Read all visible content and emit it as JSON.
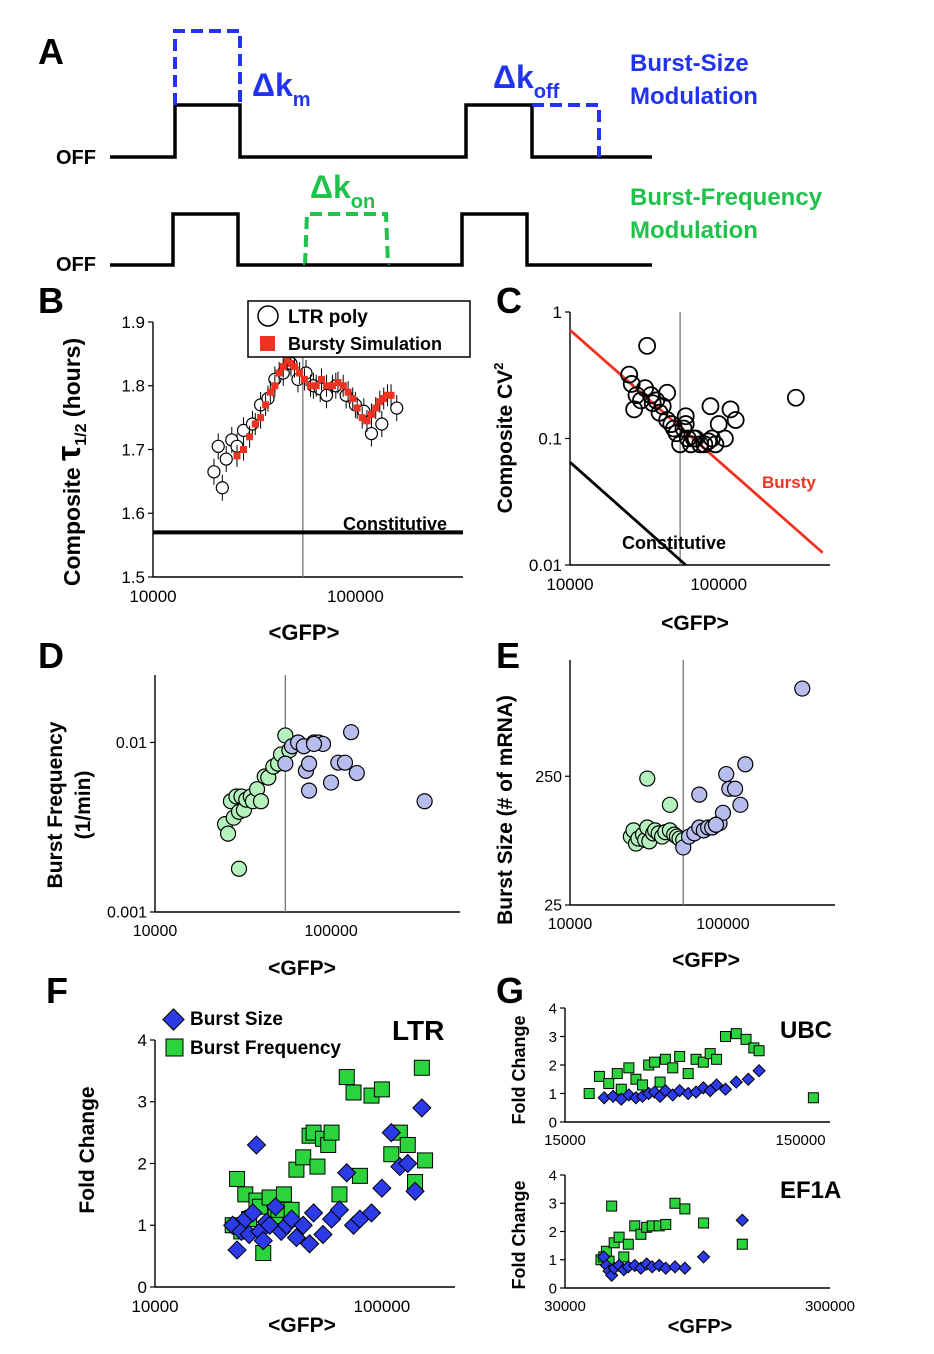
{
  "panel_labels": {
    "A": "A",
    "B": "B",
    "C": "C",
    "D": "D",
    "E": "E",
    "F": "F",
    "G": "G"
  },
  "panel_a": {
    "off_label": "OFF",
    "delta": "Δk",
    "sub_m": "m",
    "sub_off": "off",
    "sub_on": "on",
    "burst_size_line1": "Burst-Size",
    "burst_size_line2": "Modulation",
    "burst_freq_line1": "Burst-Frequency",
    "burst_freq_line2": "Modulation",
    "colors": {
      "size": "#2233ee",
      "freq": "#1fc24a",
      "signal": "#000000"
    }
  },
  "chart_data": [
    {
      "panel": "B",
      "type": "scatter",
      "ylabel_prefix": "Composite",
      "ylabel_symbol": "τ",
      "ylabel_sub": "1/2",
      "ylabel_suffix": "(hours)",
      "xlabel": "<GFP>",
      "xscale": "log",
      "xlim": [
        10000,
        340000
      ],
      "ylim": [
        1.5,
        1.9
      ],
      "xticks": [
        "10000",
        "100000"
      ],
      "yticks": [
        "1.5",
        "1.6",
        "1.7",
        "1.8",
        "1.9"
      ],
      "legend": [
        "LTR poly",
        "Bursty Simulation"
      ],
      "constitutive_label": "Constitutive",
      "constitutive_y": 1.57,
      "vline_x": 55000,
      "series": [
        {
          "name": "LTR poly",
          "marker": "circle",
          "x": [
            20000,
            21000,
            22000,
            23000,
            24500,
            26000,
            28000,
            31000,
            34000,
            37000,
            40000,
            44000,
            48000,
            52000,
            57000,
            62000,
            67000,
            72000,
            80000,
            90000,
            100000,
            110000,
            120000,
            135000,
            160000
          ],
          "y": [
            1.665,
            1.705,
            1.64,
            1.685,
            1.715,
            1.705,
            1.73,
            1.74,
            1.77,
            1.78,
            1.81,
            1.82,
            1.835,
            1.81,
            1.82,
            1.8,
            1.795,
            1.785,
            1.8,
            1.785,
            1.77,
            1.76,
            1.725,
            1.74,
            1.765
          ]
        },
        {
          "name": "Bursty Simulation",
          "marker": "square",
          "x": [
            26000,
            28000,
            30000,
            32000,
            34000,
            36000,
            38000,
            40000,
            42000,
            44000,
            46000,
            48000,
            50000,
            53000,
            56000,
            60000,
            64000,
            68000,
            72000,
            77000,
            82000,
            87000,
            92000,
            97000,
            102000,
            108000,
            114000,
            120000,
            126000,
            132000,
            138000,
            144000,
            150000
          ],
          "y": [
            1.69,
            1.7,
            1.72,
            1.74,
            1.75,
            1.77,
            1.79,
            1.8,
            1.82,
            1.83,
            1.84,
            1.835,
            1.83,
            1.82,
            1.81,
            1.8,
            1.8,
            1.81,
            1.8,
            1.8,
            1.805,
            1.8,
            1.79,
            1.78,
            1.765,
            1.75,
            1.745,
            1.755,
            1.765,
            1.775,
            1.78,
            1.785,
            1.785
          ]
        }
      ]
    },
    {
      "panel": "C",
      "type": "scatter",
      "ylabel_prefix": "Composite CV",
      "ylabel_sup": "2",
      "xlabel": "<GFP>",
      "xscale": "log",
      "yscale": "log",
      "xlim": [
        10000,
        560000
      ],
      "ylim": [
        0.01,
        1
      ],
      "xticks": [
        "10000",
        "100000"
      ],
      "yticks": [
        "0.01",
        "0.1",
        "1"
      ],
      "vline_x": 55000,
      "lines": [
        {
          "name": "Bursty",
          "color": "#ee3322",
          "x": [
            10000,
            500000
          ],
          "y": [
            0.72,
            0.0125
          ]
        },
        {
          "name": "Constitutive",
          "color": "#000000",
          "x": [
            10000,
            60000
          ],
          "y": [
            0.065,
            0.01
          ]
        }
      ],
      "series": [
        {
          "marker": "circle",
          "x": [
            25000,
            26000,
            27000,
            28000,
            30000,
            32000,
            33000,
            35000,
            36000,
            38000,
            40000,
            42000,
            45000,
            48000,
            50000,
            52000,
            55000,
            58000,
            60000,
            62000,
            65000,
            68000,
            70000,
            75000,
            80000,
            85000,
            88000,
            90000,
            95000,
            100000,
            110000,
            120000,
            130000,
            330000,
            45000,
            60000
          ],
          "y": [
            0.32,
            0.27,
            0.17,
            0.22,
            0.2,
            0.25,
            0.54,
            0.22,
            0.19,
            0.2,
            0.16,
            0.18,
            0.23,
            0.13,
            0.12,
            0.11,
            0.09,
            0.12,
            0.13,
            0.1,
            0.09,
            0.1,
            0.1,
            0.09,
            0.09,
            0.095,
            0.18,
            0.1,
            0.09,
            0.13,
            0.1,
            0.17,
            0.14,
            0.21,
            0.14,
            0.15
          ]
        }
      ]
    },
    {
      "panel": "D",
      "type": "scatter",
      "ylabel": [
        "Burst Frequency",
        "(1/min)"
      ],
      "xlabel": "<GFP>",
      "xscale": "log",
      "yscale": "log",
      "xlim": [
        10000,
        540000
      ],
      "ylim": [
        0.001,
        0.025
      ],
      "xticks": [
        "10000",
        "100000"
      ],
      "yticks": [
        "0.001",
        "0.01"
      ],
      "vline_x": 55000,
      "series": [
        {
          "color": "#b5f2bd",
          "x": [
            25000,
            26000,
            27000,
            28000,
            29000,
            30000,
            31000,
            32000,
            33000,
            35000,
            36000,
            38000,
            40000,
            42000,
            44000,
            47000,
            50000,
            52000,
            55000,
            58000,
            30000
          ],
          "y": [
            0.0033,
            0.0029,
            0.0045,
            0.0036,
            0.0048,
            0.0039,
            0.0048,
            0.004,
            0.0046,
            0.0048,
            0.0045,
            0.0053,
            0.0045,
            0.0063,
            0.0062,
            0.0072,
            0.0075,
            0.0085,
            0.011,
            0.009,
            0.0018
          ]
        },
        {
          "color": "#b7bdec",
          "x": [
            55000,
            60000,
            65000,
            70000,
            72000,
            75000,
            80000,
            85000,
            90000,
            100000,
            110000,
            120000,
            130000,
            140000,
            340000,
            75000,
            80000
          ],
          "y": [
            0.0075,
            0.0095,
            0.01,
            0.0095,
            0.0068,
            0.0052,
            0.01,
            0.01,
            0.0098,
            0.0058,
            0.0076,
            0.0076,
            0.0115,
            0.0066,
            0.0045,
            0.0075,
            0.0098
          ]
        }
      ]
    },
    {
      "panel": "E",
      "type": "scatter",
      "ylabel": "Burst Size (# of mRNA)",
      "xlabel": "<GFP>",
      "xscale": "log",
      "yscale": "log",
      "xlim": [
        10000,
        540000
      ],
      "ylim": [
        25,
        2000
      ],
      "xticks": [
        "10000",
        "100000"
      ],
      "yticks": [
        "25",
        "250"
      ],
      "vline_x": 55000,
      "series": [
        {
          "color": "#b5f2bd",
          "x": [
            25000,
            26000,
            27000,
            28000,
            30000,
            31000,
            32000,
            33000,
            35000,
            36000,
            38000,
            40000,
            42000,
            45000,
            48000,
            50000,
            52000,
            55000,
            32000,
            45000
          ],
          "y": [
            85,
            95,
            75,
            82,
            88,
            80,
            100,
            78,
            90,
            95,
            90,
            85,
            92,
            95,
            88,
            85,
            82,
            80,
            240,
            150
          ]
        },
        {
          "color": "#b7bdec",
          "x": [
            55000,
            60000,
            65000,
            70000,
            75000,
            80000,
            85000,
            90000,
            95000,
            100000,
            105000,
            110000,
            120000,
            130000,
            140000,
            330000,
            70000,
            90000
          ],
          "y": [
            70,
            85,
            90,
            100,
            95,
            100,
            100,
            105,
            108,
            130,
            260,
            200,
            200,
            150,
            310,
            1200,
            180,
            105
          ]
        }
      ]
    },
    {
      "panel": "F",
      "type": "scatter",
      "title": "LTR",
      "ylabel": "Fold Change",
      "xlabel": "<GFP>",
      "xscale": "log",
      "xlim": [
        10000,
        210000
      ],
      "ylim": [
        0,
        4
      ],
      "xticks": [
        "10000",
        "100000"
      ],
      "yticks": [
        "0",
        "1",
        "2",
        "3",
        "4"
      ],
      "series": [
        {
          "name": "Burst Size",
          "marker": "diamond",
          "color": "#2c3ae8",
          "x": [
            22000,
            23000,
            24000,
            25000,
            26000,
            27000,
            28000,
            29000,
            30000,
            31000,
            32000,
            34000,
            36000,
            38000,
            40000,
            42000,
            45000,
            48000,
            50000,
            55000,
            60000,
            65000,
            70000,
            75000,
            80000,
            90000,
            100000,
            110000,
            120000,
            130000,
            140000,
            150000
          ],
          "y": [
            1.0,
            0.6,
            0.9,
            1.1,
            0.85,
            1.2,
            2.3,
            0.9,
            0.75,
            1.05,
            1.0,
            1.3,
            0.9,
            1.0,
            1.1,
            0.8,
            1.0,
            0.7,
            1.2,
            0.85,
            1.1,
            1.25,
            1.85,
            1.0,
            1.1,
            1.2,
            1.6,
            2.5,
            1.95,
            2.0,
            1.55,
            2.9
          ]
        },
        {
          "name": "Burst Frequency",
          "marker": "square",
          "color": "#2bd43c",
          "x": [
            22000,
            23000,
            24000,
            25000,
            26000,
            28000,
            29000,
            30000,
            32000,
            34000,
            35000,
            37000,
            40000,
            42000,
            45000,
            48000,
            50000,
            52000,
            55000,
            58000,
            60000,
            65000,
            70000,
            75000,
            80000,
            90000,
            100000,
            110000,
            120000,
            130000,
            140000,
            150000,
            155000
          ],
          "y": [
            1.0,
            1.75,
            0.9,
            1.5,
            1.1,
            1.4,
            1.3,
            0.55,
            1.45,
            1.15,
            1.25,
            1.5,
            1.25,
            1.9,
            2.1,
            2.45,
            2.5,
            1.95,
            2.4,
            2.3,
            2.5,
            1.5,
            3.4,
            3.15,
            1.8,
            3.1,
            3.2,
            2.15,
            2.5,
            2.3,
            1.7,
            3.55,
            2.05
          ]
        }
      ]
    },
    {
      "panel": "G-top",
      "type": "scatter",
      "title": "UBC",
      "ylabel": "Fold Change",
      "xscale": "log",
      "xlim": [
        15000,
        200000
      ],
      "ylim": [
        0,
        4
      ],
      "xticks": [
        "15000",
        "150000"
      ],
      "yticks": [
        "0",
        "1",
        "2",
        "3",
        "4"
      ],
      "series": [
        {
          "name": "Burst Size",
          "marker": "diamond",
          "color": "#2c3ae8",
          "x": [
            22000,
            24000,
            26000,
            28000,
            30000,
            32000,
            34000,
            36000,
            38000,
            40000,
            43000,
            46000,
            50000,
            54000,
            58000,
            62000,
            66000,
            72000,
            80000,
            90000,
            100000
          ],
          "y": [
            0.85,
            0.9,
            0.8,
            0.95,
            0.85,
            0.9,
            1.0,
            1.05,
            0.9,
            1.1,
            0.95,
            1.1,
            1.0,
            1.05,
            1.2,
            1.1,
            1.3,
            1.15,
            1.4,
            1.5,
            1.8
          ]
        },
        {
          "name": "Burst Frequency",
          "marker": "square",
          "color": "#2bd43c",
          "x": [
            19000,
            21000,
            23000,
            25000,
            26000,
            28000,
            30000,
            32000,
            34000,
            36000,
            38000,
            40000,
            43000,
            46000,
            50000,
            54000,
            58000,
            62000,
            66000,
            72000,
            80000,
            88000,
            95000,
            100000,
            170000
          ],
          "y": [
            1.0,
            1.6,
            1.35,
            1.7,
            1.15,
            1.9,
            1.5,
            1.3,
            2.0,
            2.1,
            1.4,
            2.2,
            1.9,
            2.3,
            1.7,
            2.2,
            2.1,
            2.4,
            2.2,
            3.0,
            3.1,
            2.9,
            2.6,
            2.5,
            0.85
          ]
        }
      ]
    },
    {
      "panel": "G-bottom",
      "type": "scatter",
      "title": "EF1A",
      "ylabel": "Fold Change",
      "xlabel": "<GFP>",
      "xscale": "log",
      "xlim": [
        30000,
        300000
      ],
      "ylim": [
        0,
        4
      ],
      "xticks": [
        "30000",
        "300000"
      ],
      "yticks": [
        "0",
        "1",
        "2",
        "3",
        "4"
      ],
      "series": [
        {
          "name": "Burst Size",
          "marker": "diamond",
          "color": "#2c3ae8",
          "x": [
            42000,
            43000,
            44000,
            45000,
            46000,
            48000,
            50000,
            52000,
            55000,
            58000,
            61000,
            64000,
            68000,
            72000,
            78000,
            85000,
            100000,
            140000
          ],
          "y": [
            1.1,
            0.8,
            0.6,
            0.45,
            0.7,
            0.8,
            0.65,
            0.75,
            0.8,
            0.7,
            0.85,
            0.75,
            0.8,
            0.7,
            0.75,
            0.7,
            1.1,
            2.4
          ]
        },
        {
          "name": "Burst Frequency",
          "marker": "square",
          "color": "#2bd43c",
          "x": [
            41000,
            42000,
            43000,
            44000,
            45000,
            46000,
            48000,
            50000,
            52000,
            55000,
            58000,
            61000,
            64000,
            68000,
            72000,
            78000,
            85000,
            100000,
            140000
          ],
          "y": [
            1.0,
            1.1,
            1.3,
            0.95,
            2.9,
            1.6,
            1.8,
            1.1,
            1.55,
            2.2,
            1.9,
            2.15,
            2.2,
            2.2,
            2.25,
            3.0,
            2.8,
            2.3,
            1.55
          ]
        }
      ]
    }
  ]
}
